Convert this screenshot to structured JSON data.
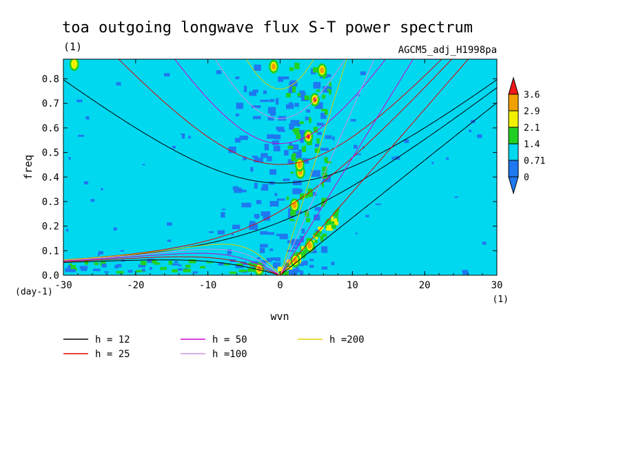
{
  "chart_data": {
    "type": "heatmap",
    "title": "toa outgoing longwave flux S-T power spectrum",
    "subtitle_left": "(1)",
    "subtitle_right": "AGCM5_adj_H1998pa",
    "xlabel": "wvn",
    "ylabel": "freq",
    "x_unit": "(1)",
    "y_unit": "(day-1)",
    "xlim": [
      -30,
      30
    ],
    "ylim": [
      0,
      0.88
    ],
    "x_ticks": [
      -30,
      -20,
      -10,
      0,
      10,
      20,
      30
    ],
    "x_tick_labels": [
      "-30",
      "-20",
      "-10",
      "0",
      "10",
      "20",
      "30"
    ],
    "y_ticks": [
      0,
      0.1,
      0.2,
      0.3,
      0.4,
      0.5,
      0.6,
      0.7,
      0.8
    ],
    "y_tick_labels": [
      "0.0",
      "0.1",
      "0.2",
      "0.3",
      "0.4",
      "0.5",
      "0.6",
      "0.7",
      "0.8"
    ],
    "colorbar": {
      "levels": [
        0,
        0.71,
        1.4,
        2.1,
        2.9,
        3.6
      ],
      "labels": [
        "0",
        "0.71",
        "1.4",
        "2.1",
        "2.9",
        "3.6"
      ],
      "colors": [
        "#1e78f0",
        "#00d8f0",
        "#20d020",
        "#f0f000",
        "#f0a000",
        "#f01818"
      ]
    },
    "background_level_color": "#00d8f0",
    "hotspots": [
      {
        "k": 4.8,
        "f": 0.715,
        "value": 3.6
      },
      {
        "k": 3.9,
        "f": 0.565,
        "value": 3.6
      },
      {
        "k": 2.8,
        "f": 0.42,
        "value": 2.5
      },
      {
        "k": 2.7,
        "f": 0.45,
        "value": 2.2
      },
      {
        "k": 2.0,
        "f": 0.285,
        "value": 2.2
      },
      {
        "k": 5.8,
        "f": 0.835,
        "value": 2.5
      },
      {
        "k": 4.1,
        "f": 0.12,
        "value": 2.6
      },
      {
        "k": 2.1,
        "f": 0.06,
        "value": 2.8
      },
      {
        "k": -0.9,
        "f": 0.85,
        "value": 2.2
      },
      {
        "k": -2.9,
        "f": 0.025,
        "value": 2.4
      },
      {
        "k": -28.5,
        "f": 0.86,
        "value": 1.8
      }
    ],
    "dispersion_curves": [
      {
        "name": "h = 12",
        "h": 12,
        "color": "#000000"
      },
      {
        "name": "h = 25",
        "h": 25,
        "color": "#e00000"
      },
      {
        "name": "h = 50",
        "h": 50,
        "color": "#d000d0"
      },
      {
        "name": "h =100",
        "h": 100,
        "color": "#d090e0"
      },
      {
        "name": "h =200",
        "h": 200,
        "color": "#e0d000"
      }
    ]
  }
}
